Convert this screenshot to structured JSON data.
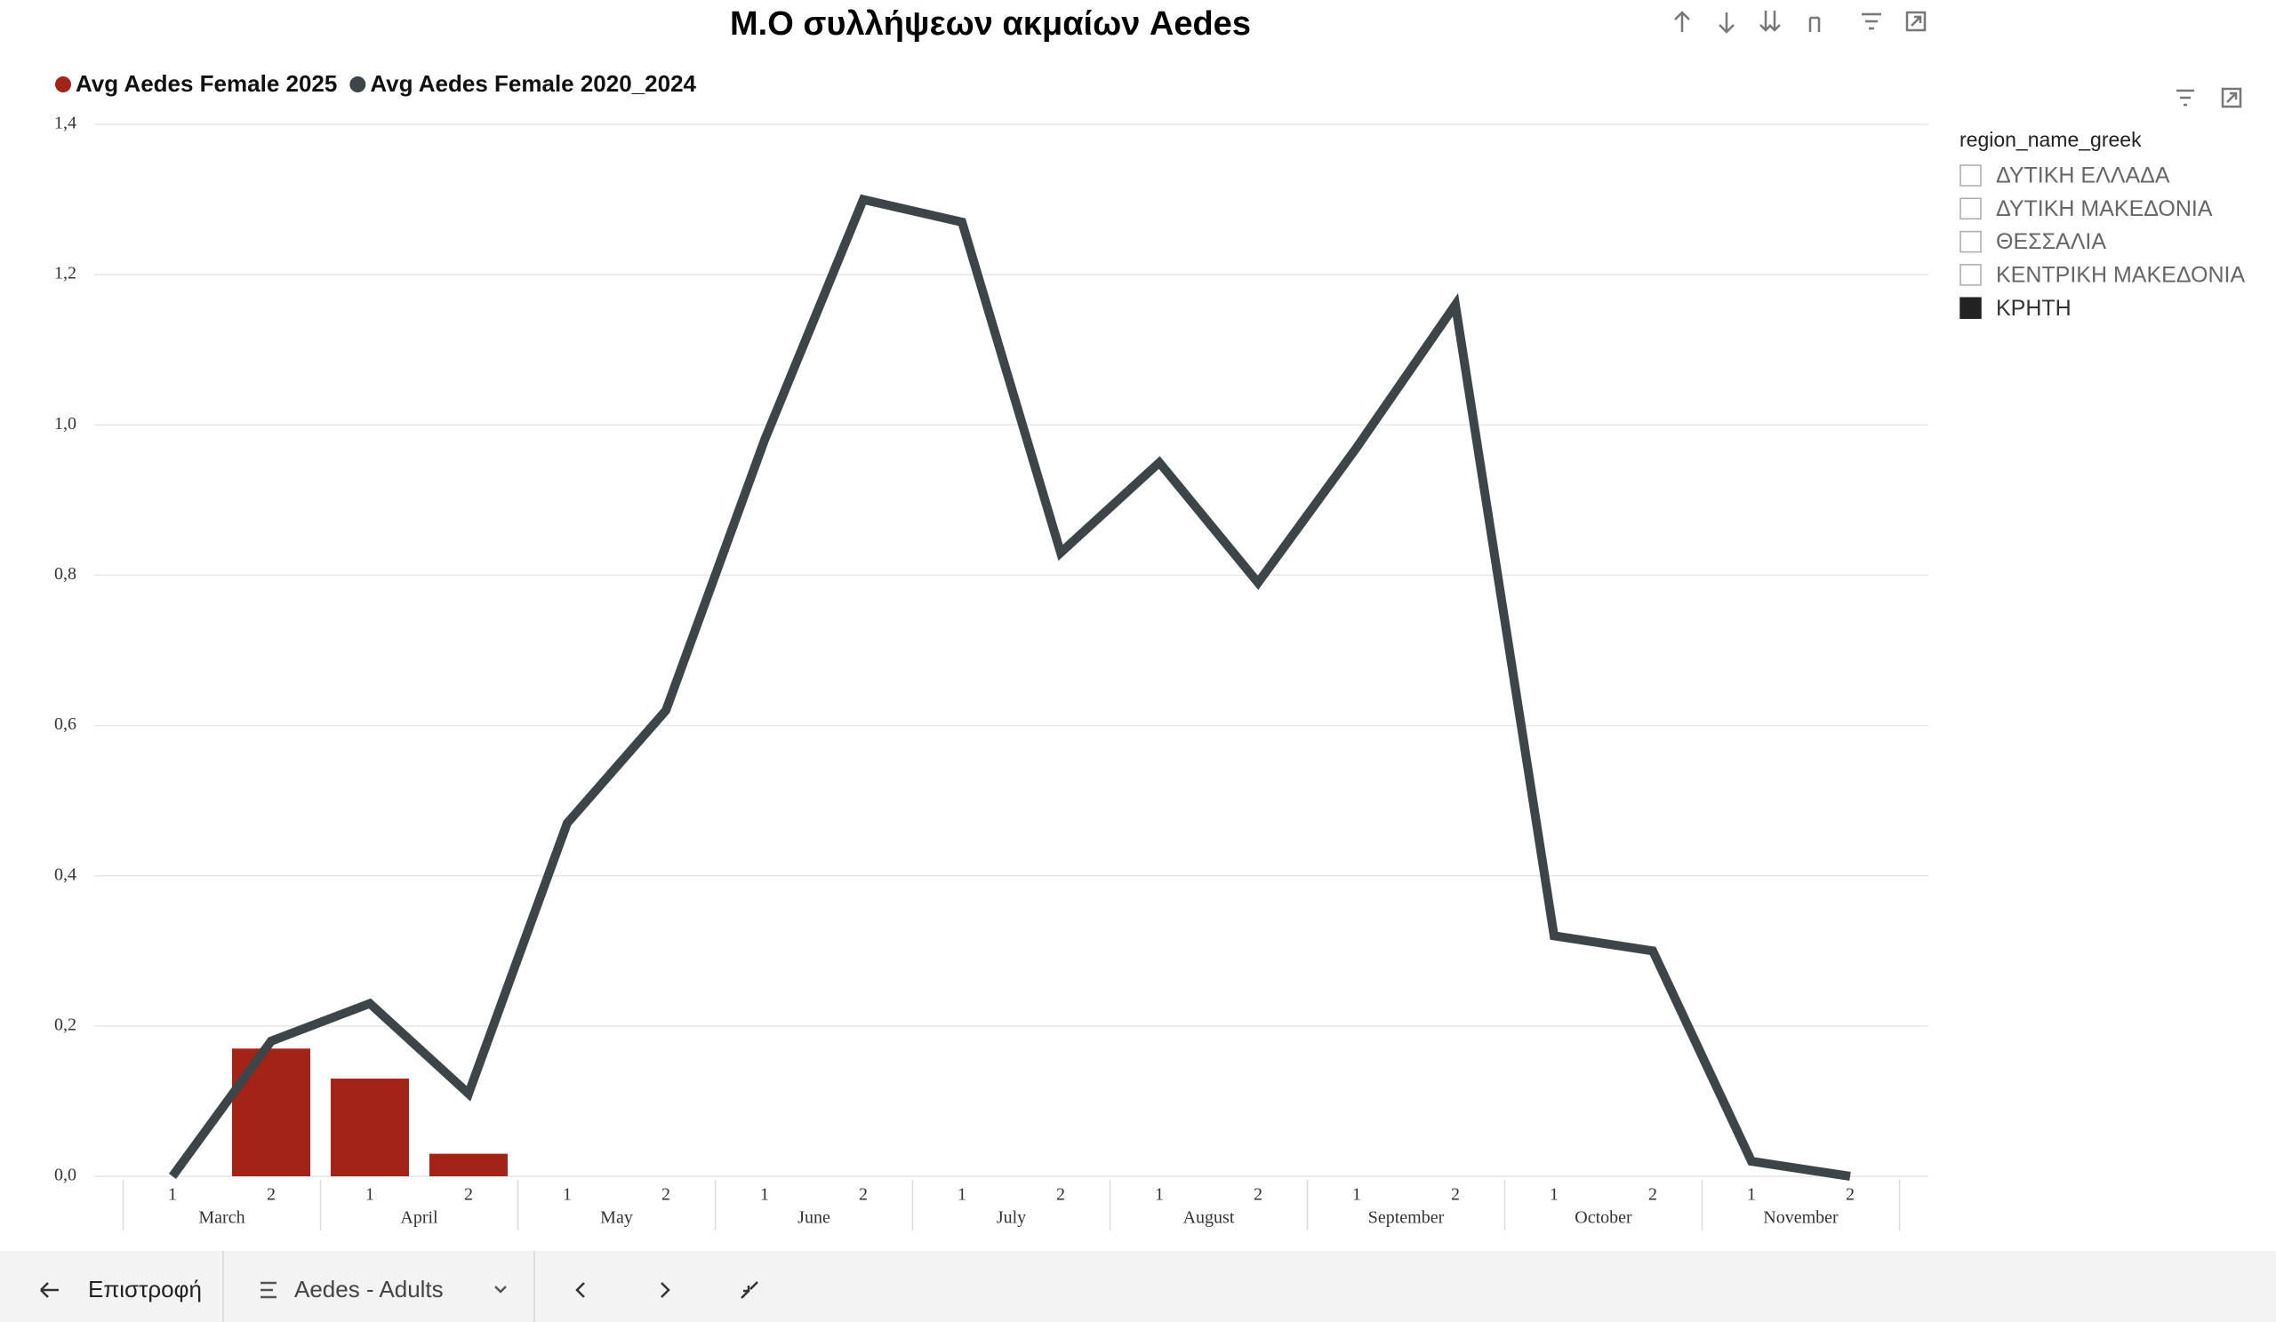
{
  "chart_data": {
    "type": "combo",
    "title": "Μ.Ο συλλήψεων ακμαίων Aedes",
    "categories": [
      "1",
      "2",
      "1",
      "2",
      "1",
      "2",
      "1",
      "2",
      "1",
      "2",
      "1",
      "2",
      "1",
      "2",
      "1",
      "2",
      "1",
      "2"
    ],
    "groups": [
      "March",
      "April",
      "May",
      "June",
      "July",
      "August",
      "September",
      "October",
      "November"
    ],
    "series": [
      {
        "name": "Avg Aedes Female 2025",
        "type": "bar",
        "color": "#a32416",
        "values": [
          null,
          0.17,
          0.13,
          0.03,
          null,
          null,
          null,
          null,
          null,
          null,
          null,
          null,
          null,
          null,
          null,
          null,
          null,
          null
        ]
      },
      {
        "name": "Avg Aedes Female 2020_2024",
        "type": "line",
        "color": "#3d4548",
        "values": [
          0.0,
          0.18,
          0.23,
          0.11,
          0.47,
          0.62,
          0.98,
          1.3,
          1.27,
          0.83,
          0.95,
          0.79,
          0.97,
          1.16,
          0.32,
          0.3,
          0.02,
          0.0
        ]
      }
    ],
    "ylim": [
      0,
      1.4
    ],
    "yticks": [
      {
        "value": 0,
        "label": "0,0"
      },
      {
        "value": 0.2,
        "label": "0,2"
      },
      {
        "value": 0.4,
        "label": "0,4"
      },
      {
        "value": 0.6,
        "label": "0,6"
      },
      {
        "value": 0.8,
        "label": "0,8"
      },
      {
        "value": 1.0,
        "label": "1,0"
      },
      {
        "value": 1.2,
        "label": "1,2"
      },
      {
        "value": 1.4,
        "label": "1,4"
      }
    ],
    "grid": true
  },
  "slicer": {
    "title": "region_name_greek",
    "items": [
      {
        "label": "ΔΥΤΙΚΗ ΕΛΛΑΔΑ",
        "selected": false
      },
      {
        "label": "ΔΥΤΙΚΗ ΜΑΚΕΔΟΝΙΑ",
        "selected": false
      },
      {
        "label": "ΘΕΣΣΑΛΙΑ",
        "selected": false
      },
      {
        "label": "ΚΕΝΤΡΙΚΗ ΜΑΚΕΔΟΝΙΑ",
        "selected": false
      },
      {
        "label": "ΚΡΗΤΗ",
        "selected": true
      }
    ]
  },
  "nav": {
    "back": "Επιστροφή",
    "page": "Aedes - Adults"
  }
}
